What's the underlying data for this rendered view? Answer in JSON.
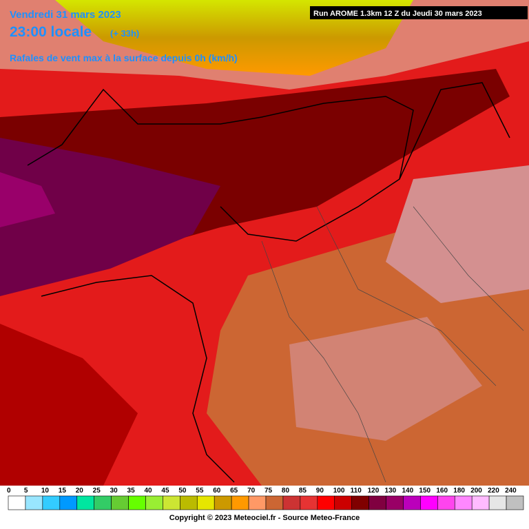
{
  "header": {
    "date": "Vendredi 31 mars 2023",
    "time": "23:00 locale",
    "lead": "(+ 33h)",
    "variable": "Rafales de vent max à la surface depuis 0h (km/h)",
    "run": "Run AROME 1.3km 12 Z du Jeudi 30 mars 2023"
  },
  "legend": {
    "values": [
      0,
      5,
      10,
      15,
      20,
      25,
      30,
      35,
      40,
      45,
      50,
      55,
      60,
      65,
      70,
      75,
      80,
      85,
      90,
      100,
      110,
      120,
      130,
      140,
      150,
      160,
      180,
      200,
      220,
      240
    ],
    "colors": [
      "#ffffff",
      "#99e6ff",
      "#33ccff",
      "#0099ff",
      "#00e6a0",
      "#33cc66",
      "#66cc33",
      "#66ff00",
      "#99ee33",
      "#cce633",
      "#bbbb00",
      "#e6e600",
      "#cc9900",
      "#ff9900",
      "#ff9966",
      "#cc6633",
      "#cc3333",
      "#e63333",
      "#ff0000",
      "#cc0000",
      "#800000",
      "#800040",
      "#990066",
      "#bb00bb",
      "#ff00ff",
      "#ff44ee",
      "#ff88ff",
      "#ffbbff",
      "#e6e6e6",
      "#c0c0c0"
    ]
  },
  "footer": {
    "copyright": "Copyright © 2023 Meteociel.fr - Source Meteo-France"
  }
}
